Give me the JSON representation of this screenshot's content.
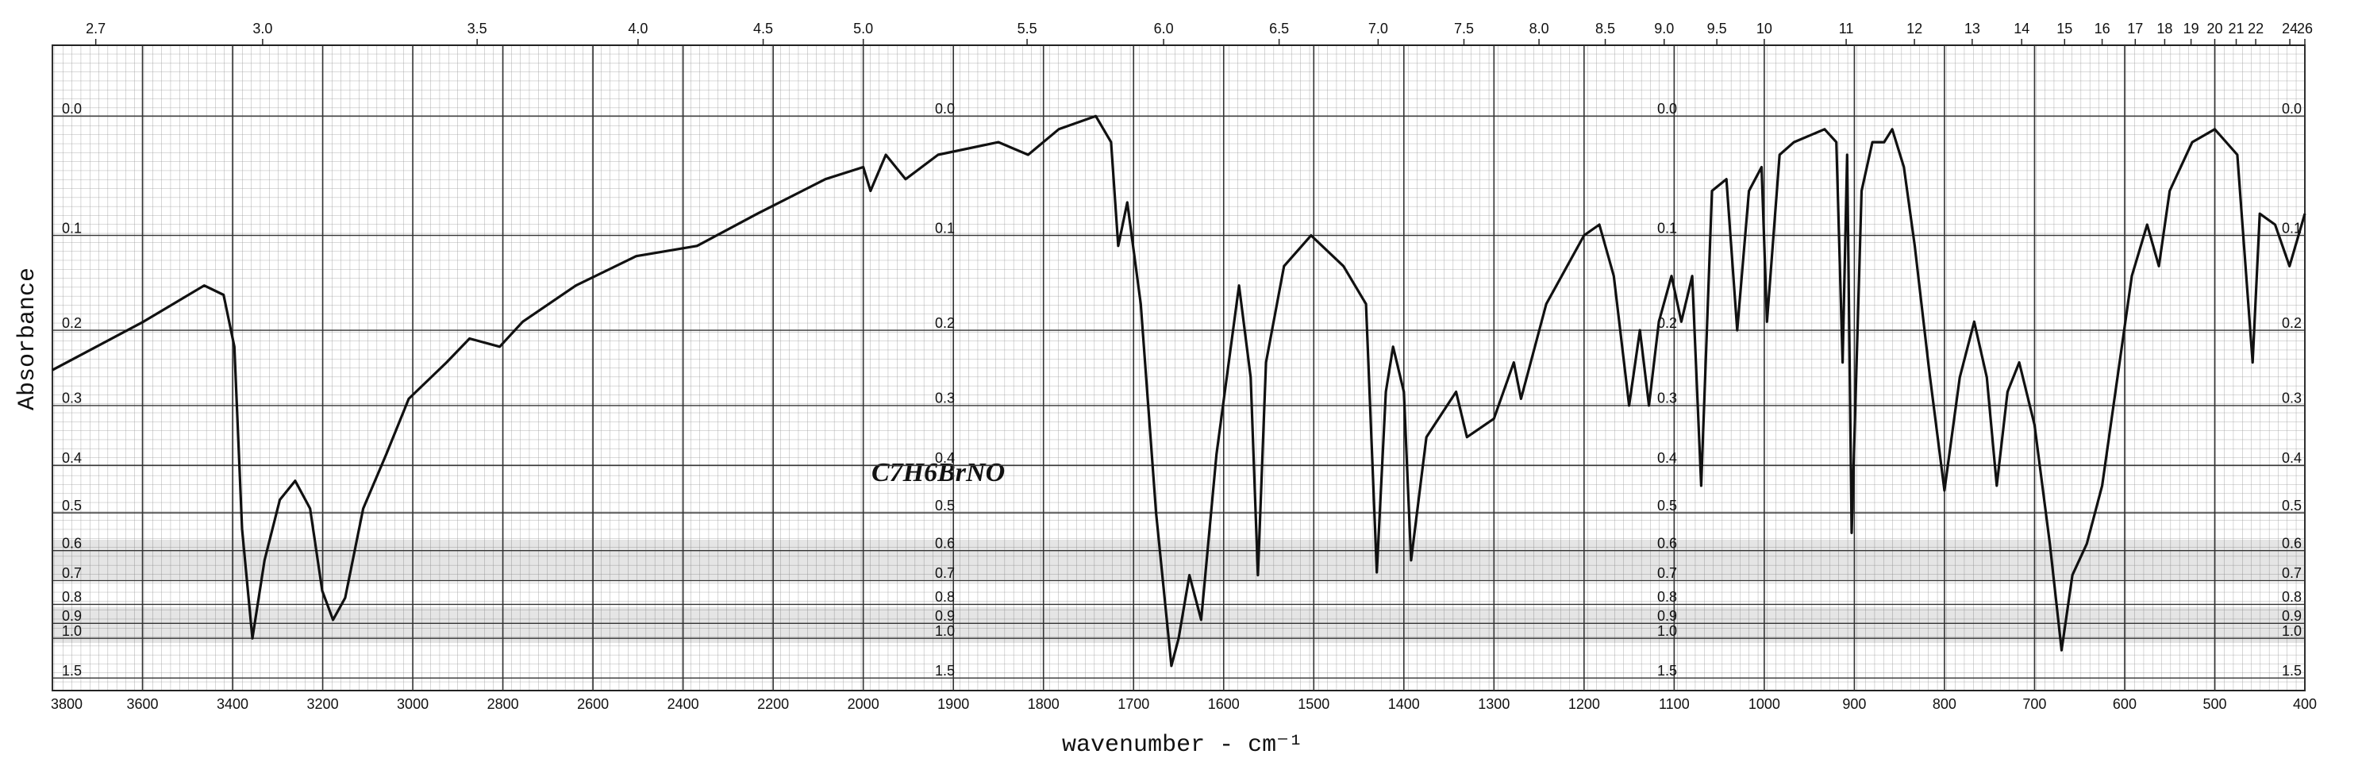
{
  "chart_data": {
    "type": "line",
    "xlabel": "wavenumber - cm⁻¹",
    "ylabel": "Absorbance",
    "annotations": [
      "C7H6BrNO"
    ],
    "color": "#111111",
    "grid": true,
    "yscale": "transmittance",
    "xlim": [
      3800,
      400
    ],
    "xticks": [
      3800,
      3600,
      3400,
      3200,
      3000,
      2800,
      2600,
      2400,
      2200,
      2000,
      1900,
      1800,
      1700,
      1600,
      1500,
      1400,
      1300,
      1200,
      1100,
      1000,
      900,
      800,
      700,
      600,
      500,
      400
    ],
    "ylim": [
      -0.05,
      2
    ],
    "yticks": [
      {
        "value": 0,
        "label": "0.0"
      },
      0.1,
      0.2,
      0.3,
      0.4,
      0.5,
      0.6,
      0.7,
      0.8,
      0.9,
      {
        "value": 1,
        "label": "1.0"
      },
      1.5
    ],
    "x2ticks": [
      2.7,
      {
        "value": 3,
        "label": "3.0"
      },
      3.5,
      {
        "value": 4,
        "label": "4.0"
      },
      4.5,
      {
        "value": 5,
        "label": "5.0"
      },
      5.5,
      {
        "value": 6,
        "label": "6.0"
      },
      6.5,
      {
        "value": 7,
        "label": "7.0"
      },
      7.5,
      {
        "value": 8,
        "label": "8.0"
      },
      8.5,
      {
        "value": 9,
        "label": "9.0"
      },
      9.5,
      10,
      11,
      12,
      13,
      14,
      15,
      16,
      17,
      18,
      19,
      20,
      21,
      22,
      24,
      26
    ],
    "x": [
      3800,
      3598,
      3463,
      3420,
      3396,
      3379,
      3356,
      3329,
      3295,
      3261,
      3228,
      3201,
      3177,
      3150,
      3110,
      3059,
      3009,
      2925,
      2874,
      2807,
      2756,
      2638,
      2504,
      2369,
      2235,
      2084,
      2000,
      1992,
      1975,
      1953,
      1917,
      1850,
      1817,
      1783,
      1742,
      1725,
      1717,
      1707,
      1692,
      1675,
      1658,
      1650,
      1638,
      1625,
      1608,
      1583,
      1570,
      1562,
      1553,
      1533,
      1503,
      1467,
      1442,
      1430,
      1420,
      1412,
      1400,
      1392,
      1375,
      1342,
      1330,
      1300,
      1278,
      1270,
      1242,
      1200,
      1183,
      1167,
      1150,
      1138,
      1128,
      1117,
      1103,
      1092,
      1080,
      1070,
      1058,
      1042,
      1030,
      1017,
      1003,
      997,
      983,
      967,
      933,
      920,
      913,
      908,
      903,
      892,
      880,
      867,
      858,
      845,
      833,
      817,
      800,
      783,
      767,
      753,
      742,
      730,
      717,
      700,
      683,
      670,
      658,
      642,
      625,
      608,
      592,
      575,
      562,
      550,
      525,
      500,
      475,
      458,
      450,
      433,
      417,
      400
    ],
    "values": [
      0.25,
      0.19,
      0.15,
      0.16,
      0.22,
      0.54,
      1,
      0.63,
      0.47,
      0.43,
      0.49,
      0.74,
      0.88,
      0.77,
      0.49,
      0.38,
      0.29,
      0.24,
      0.21,
      0.22,
      0.19,
      0.15,
      0.12,
      0.11,
      0.08,
      0.05,
      0.04,
      0.06,
      0.03,
      0.05,
      0.03,
      0.02,
      0.03,
      0.01,
      0,
      0.02,
      0.11,
      0.07,
      0.17,
      0.5,
      1.28,
      1,
      0.68,
      0.88,
      0.38,
      0.15,
      0.26,
      0.68,
      0.24,
      0.13,
      0.1,
      0.13,
      0.17,
      0.67,
      0.28,
      0.22,
      0.28,
      0.63,
      0.35,
      0.28,
      0.35,
      0.32,
      0.24,
      0.29,
      0.17,
      0.1,
      0.09,
      0.14,
      0.3,
      0.2,
      0.3,
      0.19,
      0.14,
      0.19,
      0.14,
      0.44,
      0.06,
      0.05,
      0.2,
      0.06,
      0.04,
      0.19,
      0.03,
      0.02,
      0.01,
      0.02,
      0.24,
      0.03,
      0.55,
      0.06,
      0.02,
      0.02,
      0.01,
      0.04,
      0.11,
      0.25,
      0.45,
      0.26,
      0.19,
      0.26,
      0.44,
      0.28,
      0.24,
      0.33,
      0.58,
      1.1,
      0.68,
      0.58,
      0.44,
      0.26,
      0.14,
      0.09,
      0.13,
      0.06,
      0.02,
      0.01,
      0.03,
      0.24,
      0.08,
      0.09,
      0.13,
      0.08
    ]
  }
}
